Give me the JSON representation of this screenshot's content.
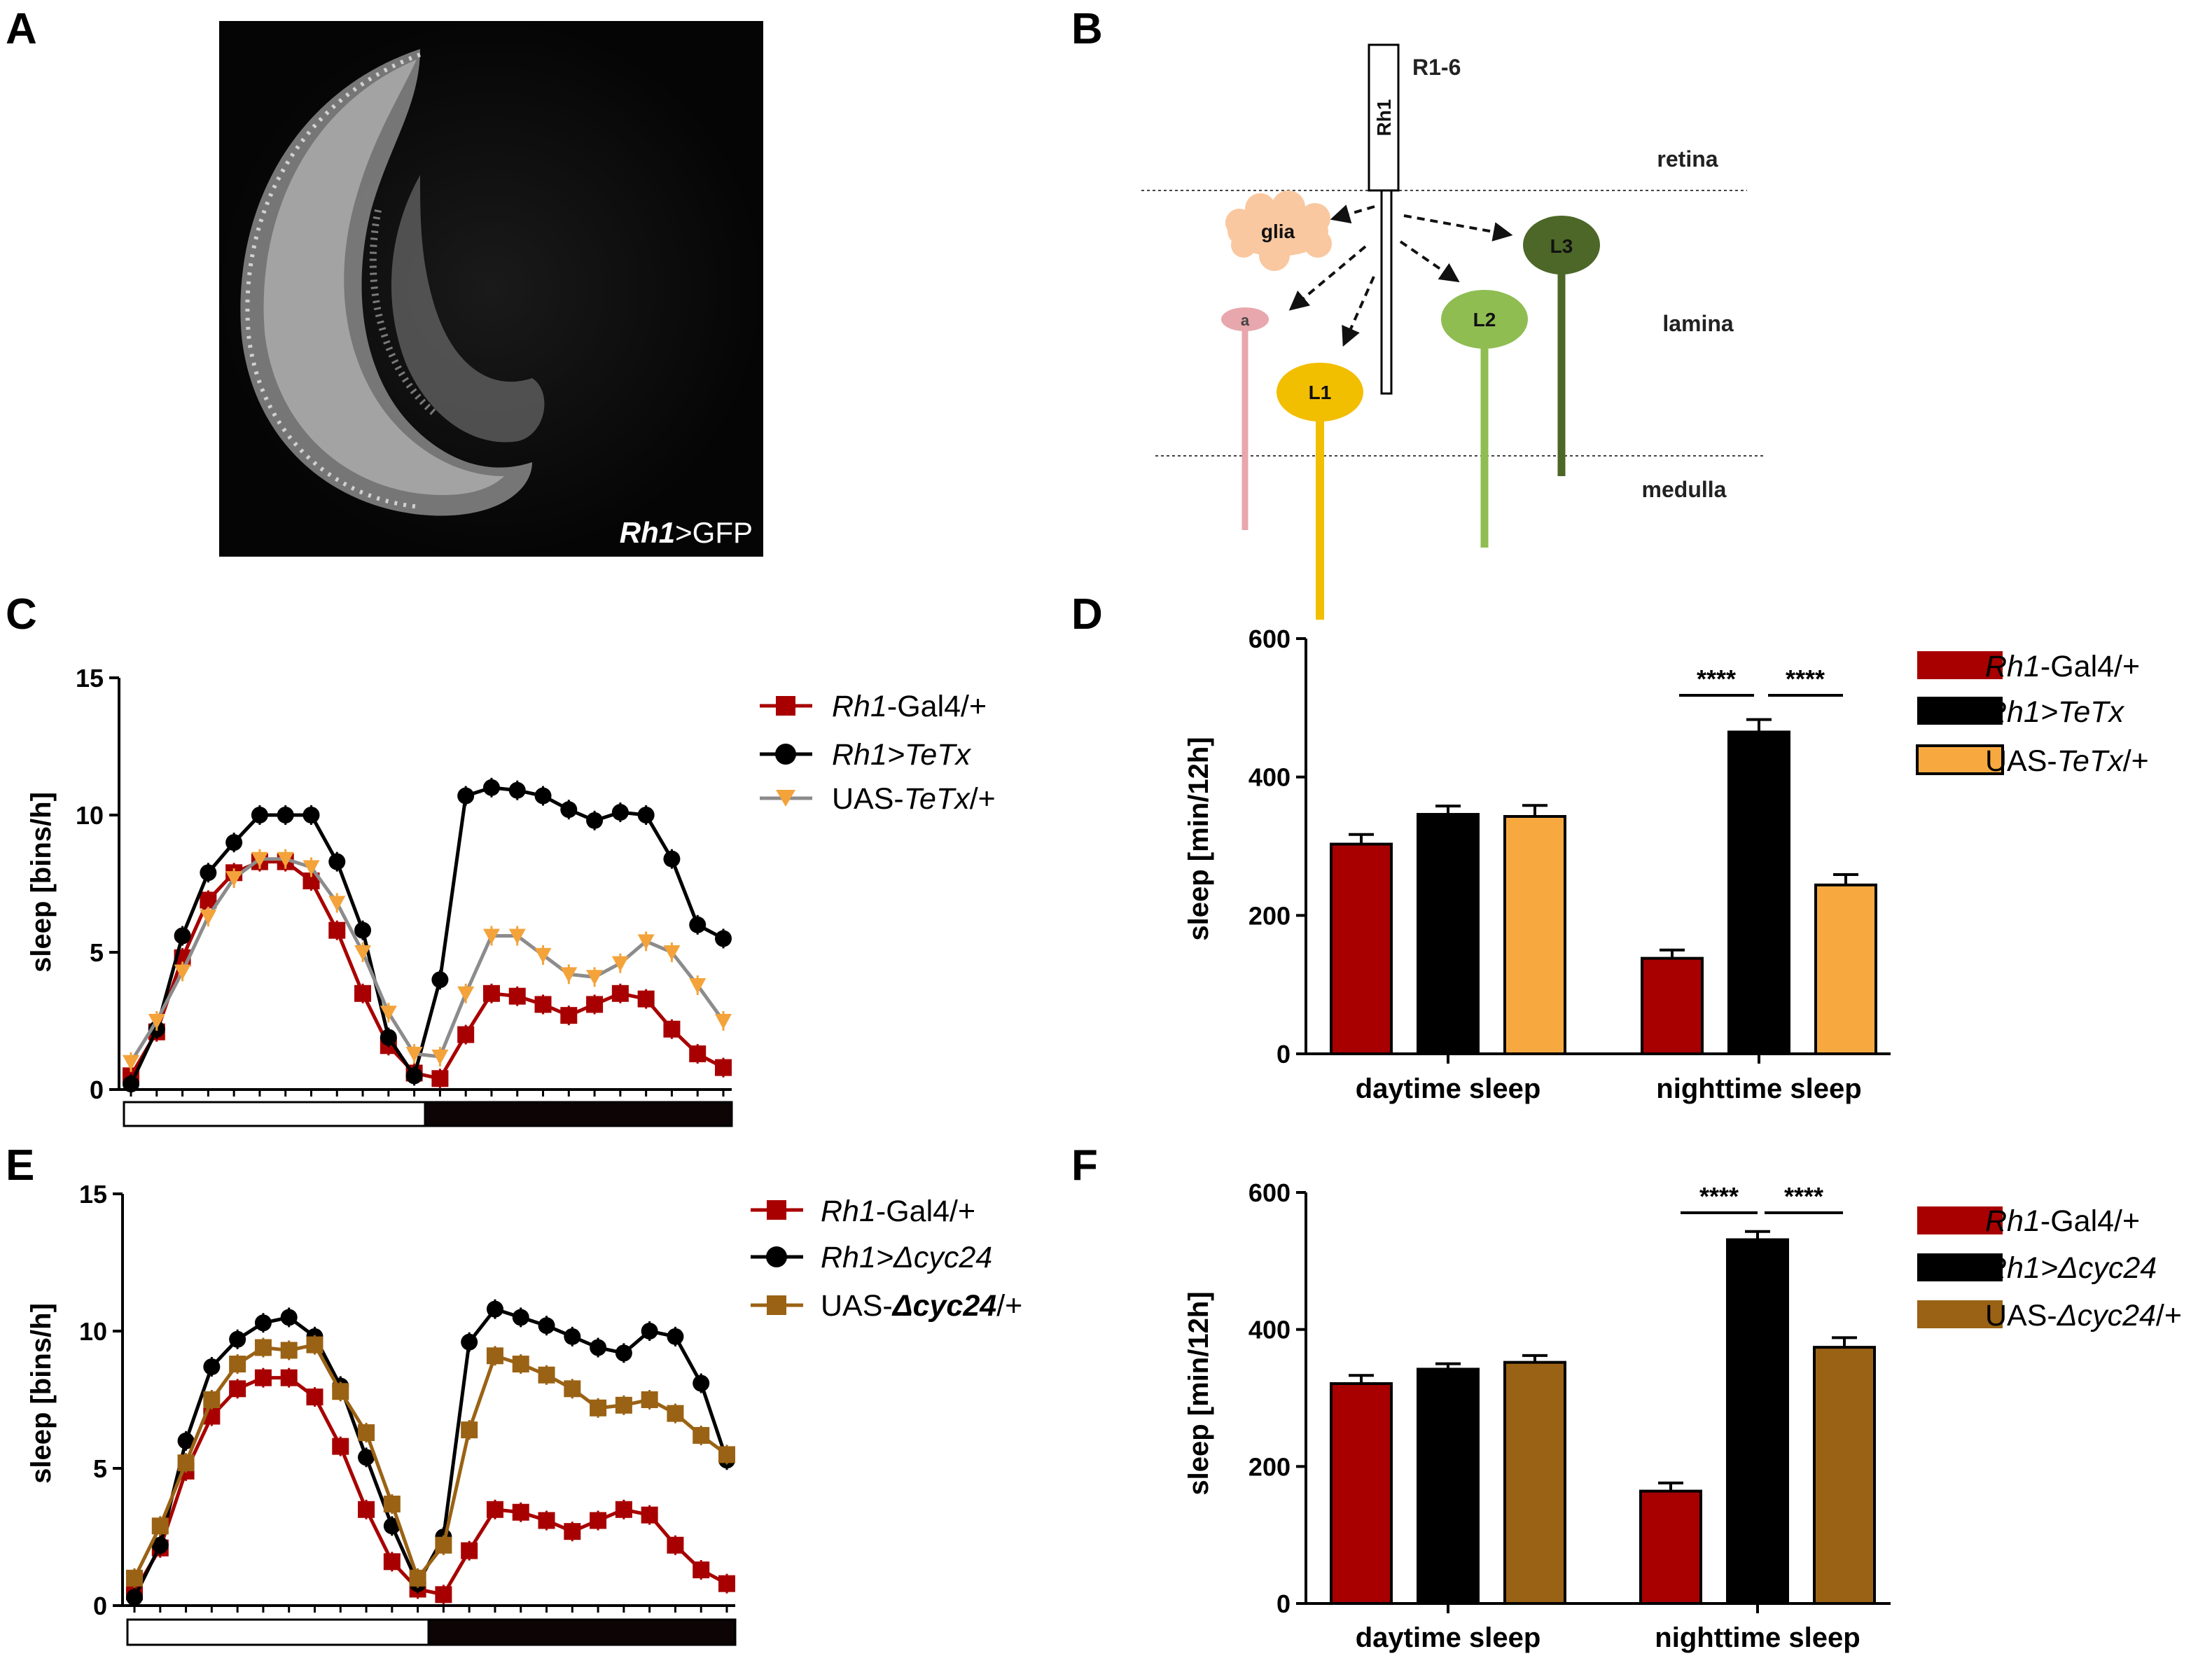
{
  "figure": {
    "panel_labels": [
      "A",
      "B",
      "C",
      "D",
      "E",
      "F"
    ]
  },
  "micrograph": {
    "label_italic": "Rh1",
    "label_rest": ">GFP"
  },
  "diagram": {
    "photoreceptor": "R1-6",
    "rhodopsin": "Rh1",
    "layers": [
      "retina",
      "lamina",
      "medulla"
    ],
    "cells": [
      "glia",
      "a",
      "L1",
      "L2",
      "L3"
    ],
    "colors": {
      "glia": "#f9c8a0",
      "a": "#e8a7ac",
      "L1": "#f2be00",
      "L2": "#8fbd52",
      "L3": "#4c6727"
    }
  },
  "chart_data": [
    {
      "panel": "C",
      "type": "line",
      "ylabel": "sleep [bins/h]",
      "ylim": [
        0,
        15
      ],
      "yticks": [
        "0",
        "5",
        "10",
        "15"
      ],
      "x": [
        0,
        1,
        2,
        3,
        4,
        5,
        6,
        7,
        8,
        9,
        10,
        11,
        12,
        13,
        14,
        15,
        16,
        17,
        18,
        19,
        20,
        21,
        22,
        23
      ],
      "series": [
        {
          "name_italic": "Rh1",
          "name_rest": "-Gal4/+",
          "color": "#a80000",
          "marker": "square",
          "values": [
            0.5,
            2.1,
            4.8,
            6.9,
            7.9,
            8.3,
            8.3,
            7.6,
            5.8,
            3.5,
            1.6,
            0.6,
            0.4,
            2.0,
            3.5,
            3.4,
            3.1,
            2.7,
            3.1,
            3.5,
            3.3,
            2.2,
            1.3,
            0.8
          ]
        },
        {
          "name_italic": "Rh1>TeTx",
          "name_rest": "",
          "color": "#000000",
          "marker": "circle",
          "values": [
            0.2,
            2.2,
            5.6,
            7.9,
            9.0,
            10.0,
            10.0,
            10.0,
            8.3,
            5.8,
            1.9,
            0.5,
            4.0,
            10.7,
            11.0,
            10.9,
            10.7,
            10.2,
            9.8,
            10.1,
            10.0,
            8.4,
            6.0,
            5.5
          ]
        },
        {
          "name_italic": "",
          "name_rest": "UAS-",
          "name_tail_italic": "TeTx",
          "name_tail": "/+",
          "color": "#f3a33a",
          "marker": "triangle",
          "line_color": "#8c8c8c",
          "values": [
            1.0,
            2.5,
            4.3,
            6.3,
            7.7,
            8.4,
            8.4,
            8.1,
            6.8,
            5.0,
            2.8,
            1.3,
            1.2,
            3.5,
            5.6,
            5.6,
            4.9,
            4.2,
            4.1,
            4.6,
            5.4,
            5.0,
            3.8,
            2.5
          ]
        }
      ],
      "light_bar": [
        "light",
        "dark"
      ]
    },
    {
      "panel": "D",
      "type": "bar",
      "ylabel": "sleep [min/12h]",
      "ylim": [
        0,
        600
      ],
      "yticks": [
        "0",
        "200",
        "400",
        "600"
      ],
      "categories": [
        "daytime sleep",
        "nighttime sleep"
      ],
      "series": [
        {
          "name_italic": "Rh1",
          "name_rest": "-Gal4/+",
          "color": "#a80000",
          "values": [
            303,
            138
          ],
          "errors": [
            14,
            12
          ]
        },
        {
          "name_italic": "Rh1>TeTx",
          "name_rest": "",
          "color": "#000000",
          "values": [
            346,
            465
          ],
          "errors": [
            12,
            18
          ]
        },
        {
          "name_italic": "",
          "name_rest": "UAS-",
          "name_tail_italic": "TeTx",
          "name_tail": "/+",
          "color": "#f7a940",
          "values": [
            343,
            244
          ],
          "errors": [
            16,
            15
          ]
        }
      ],
      "significance": [
        "****",
        "****"
      ]
    },
    {
      "panel": "E",
      "type": "line",
      "ylabel": "sleep [bins/h]",
      "ylim": [
        0,
        15
      ],
      "yticks": [
        "0",
        "5",
        "10",
        "15"
      ],
      "x": [
        0,
        1,
        2,
        3,
        4,
        5,
        6,
        7,
        8,
        9,
        10,
        11,
        12,
        13,
        14,
        15,
        16,
        17,
        18,
        19,
        20,
        21,
        22,
        23
      ],
      "series": [
        {
          "name_italic": "Rh1",
          "name_rest": "-Gal4/+",
          "color": "#a80000",
          "marker": "square",
          "values": [
            0.5,
            2.1,
            4.9,
            6.9,
            7.9,
            8.3,
            8.3,
            7.6,
            5.8,
            3.5,
            1.6,
            0.6,
            0.4,
            2.0,
            3.5,
            3.4,
            3.1,
            2.7,
            3.1,
            3.5,
            3.3,
            2.2,
            1.3,
            0.8
          ]
        },
        {
          "name_italic": "Rh1>Δcyc24",
          "name_rest": "",
          "color": "#000000",
          "marker": "circle",
          "values": [
            0.3,
            2.2,
            6.0,
            8.7,
            9.7,
            10.3,
            10.5,
            9.8,
            8.0,
            5.4,
            2.9,
            0.8,
            2.5,
            9.6,
            10.8,
            10.5,
            10.2,
            9.8,
            9.4,
            9.2,
            10.0,
            9.8,
            8.1,
            5.3
          ]
        },
        {
          "name_italic": "",
          "name_rest": "UAS-",
          "name_tail_italic": "Δcyc24",
          "name_tail": "/+",
          "color": "#9a6214",
          "marker": "square",
          "values": [
            1.0,
            2.9,
            5.2,
            7.5,
            8.8,
            9.4,
            9.3,
            9.5,
            7.8,
            6.3,
            3.7,
            1.0,
            2.2,
            6.4,
            9.1,
            8.8,
            8.4,
            7.9,
            7.2,
            7.3,
            7.5,
            7.0,
            6.2,
            5.5
          ]
        }
      ],
      "light_bar": [
        "light",
        "dark"
      ]
    },
    {
      "panel": "F",
      "type": "bar",
      "ylabel": "sleep [min/12h]",
      "ylim": [
        0,
        600
      ],
      "yticks": [
        "0",
        "200",
        "400",
        "600"
      ],
      "categories": [
        "daytime sleep",
        "nighttime sleep"
      ],
      "series": [
        {
          "name_italic": "Rh1",
          "name_rest": "-Gal4/+",
          "color": "#a80000",
          "values": [
            321,
            164
          ],
          "errors": [
            12,
            12
          ]
        },
        {
          "name_italic": "Rh1>Δcyc24",
          "name_rest": "",
          "color": "#000000",
          "values": [
            342,
            531
          ],
          "errors": [
            8,
            12
          ]
        },
        {
          "name_italic": "",
          "name_rest": "UAS-",
          "name_tail_italic": "Δcyc24",
          "name_tail": "/+",
          "color": "#9a6214",
          "values": [
            352,
            374
          ],
          "errors": [
            10,
            14
          ]
        }
      ],
      "significance": [
        "****",
        "****"
      ]
    }
  ]
}
